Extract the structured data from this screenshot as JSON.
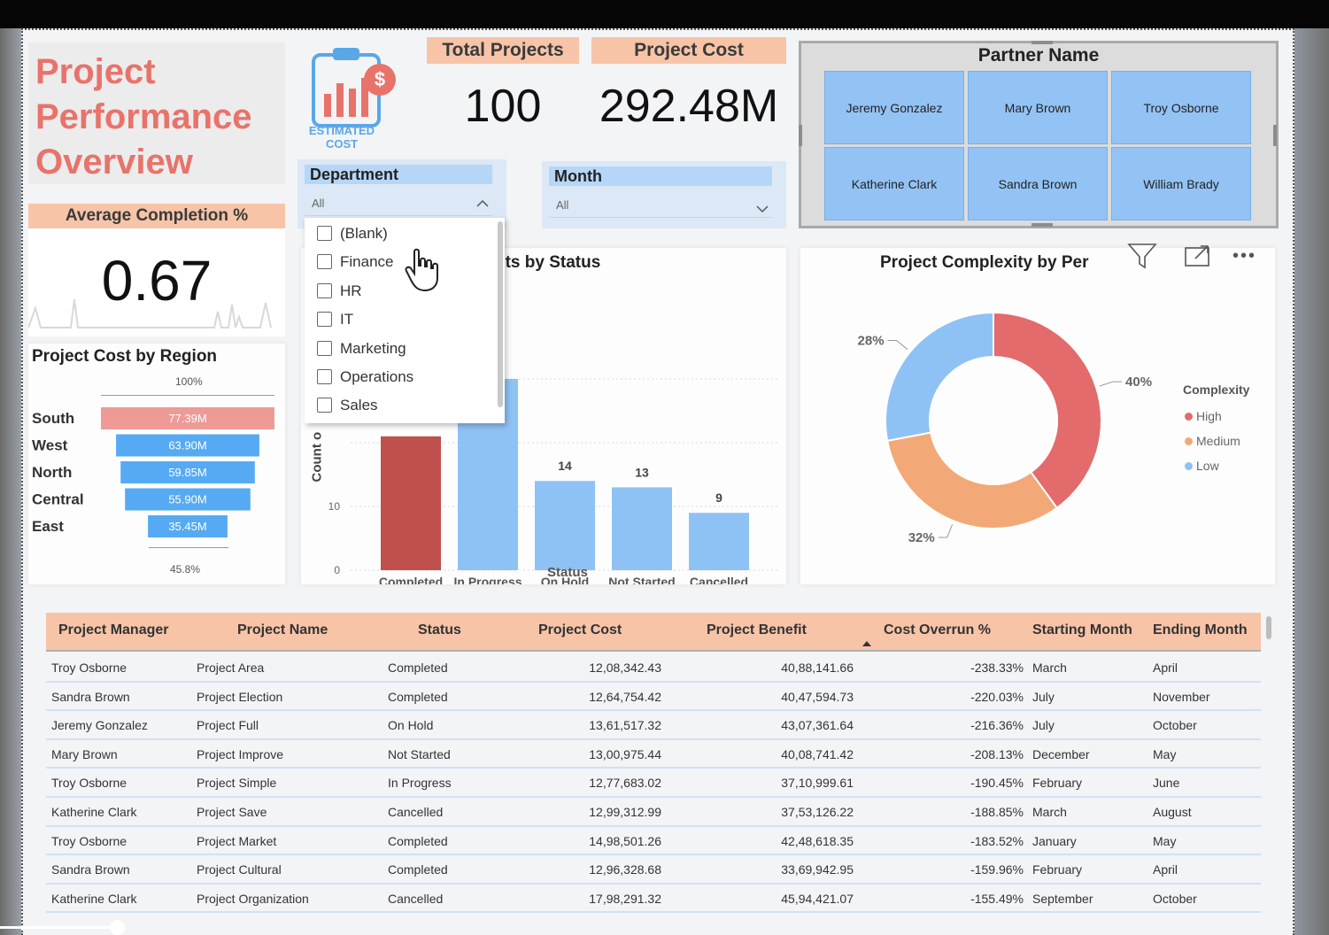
{
  "title_lines": [
    "Project",
    "Performance",
    "Overview"
  ],
  "icon_text": [
    "ESTIMATED",
    "COST"
  ],
  "kpis": {
    "total_projects": {
      "label": "Total Projects",
      "value": "100"
    },
    "project_cost": {
      "label": "Project Cost",
      "value": "292.48M"
    },
    "avg_completion": {
      "label": "Average Completion %",
      "value": "0.67"
    }
  },
  "department_slicer": {
    "label": "Department",
    "selected": "All",
    "options": [
      "(Blank)",
      "Finance",
      "HR",
      "IT",
      "Marketing",
      "Operations",
      "Sales"
    ]
  },
  "month_slicer": {
    "label": "Month",
    "selected": "All"
  },
  "partner_slicer": {
    "title": "Partner Name",
    "names": [
      "Jeremy Gonzalez",
      "Mary Brown",
      "Troy Osborne",
      "Katherine Clark",
      "Sandra Brown",
      "William Brady"
    ]
  },
  "region_chart": {
    "title": "Project Cost by Region",
    "top_pct": "100%",
    "bottom_pct": "45.8%"
  },
  "status_chart": {
    "title_fragment": "cts by Status",
    "ylabel_fragment": "Count o",
    "xlabel": "Status",
    "y_ticks": [
      "0",
      "10"
    ]
  },
  "complexity_chart": {
    "title": "Project Complexity by Per",
    "legend_title": "Complexity",
    "labels": [
      "40%",
      "32%",
      "28%"
    ]
  },
  "chart_data": [
    {
      "type": "bar",
      "orientation": "horizontal-funnel",
      "title": "Project Cost by Region",
      "categories": [
        "South",
        "West",
        "North",
        "Central",
        "East"
      ],
      "values": [
        77.39,
        63.9,
        59.85,
        55.9,
        35.45
      ],
      "value_labels": [
        "77.39M",
        "63.90M",
        "59.85M",
        "55.90M",
        "35.45M"
      ],
      "highlight": "South"
    },
    {
      "type": "bar",
      "title": "cts by Status",
      "xlabel": "Status",
      "ylabel": "Count o",
      "categories": [
        "Completed",
        "In Progress",
        "On Hold",
        "Not Started",
        "Cancelled"
      ],
      "values": [
        21,
        30,
        14,
        13,
        9
      ],
      "value_labels": [
        "",
        "",
        "14",
        "13",
        "9"
      ],
      "ylim": [
        0,
        30
      ]
    },
    {
      "type": "pie",
      "donut": true,
      "title": "Project Complexity by Per",
      "legend_title": "Complexity",
      "series": [
        {
          "name": "High",
          "value": 40,
          "color": "#e36b6b"
        },
        {
          "name": "Medium",
          "value": 32,
          "color": "#f3a877"
        },
        {
          "name": "Low",
          "value": 28,
          "color": "#8fc2f4"
        }
      ]
    }
  ],
  "table": {
    "columns": [
      "Project Manager",
      "Project Name",
      "Status",
      "Project Cost",
      "Project Benefit",
      "Cost Overrun %",
      "Starting Month",
      "Ending Month"
    ],
    "rows": [
      [
        "Troy Osborne",
        "Project Area",
        "Completed",
        "12,08,342.43",
        "40,88,141.66",
        "-238.33%",
        "March",
        "April"
      ],
      [
        "Sandra Brown",
        "Project Election",
        "Completed",
        "12,64,754.42",
        "40,47,594.73",
        "-220.03%",
        "July",
        "November"
      ],
      [
        "Jeremy Gonzalez",
        "Project Full",
        "On Hold",
        "13,61,517.32",
        "43,07,361.64",
        "-216.36%",
        "July",
        "October"
      ],
      [
        "Mary Brown",
        "Project Improve",
        "Not Started",
        "13,00,975.44",
        "40,08,741.42",
        "-208.13%",
        "December",
        "May"
      ],
      [
        "Troy Osborne",
        "Project Simple",
        "In Progress",
        "12,77,683.02",
        "37,10,999.61",
        "-190.45%",
        "February",
        "June"
      ],
      [
        "Katherine Clark",
        "Project Save",
        "Cancelled",
        "12,99,312.99",
        "37,53,126.22",
        "-188.85%",
        "March",
        "August"
      ],
      [
        "Troy Osborne",
        "Project Market",
        "Completed",
        "14,98,501.26",
        "42,48,618.35",
        "-183.52%",
        "January",
        "May"
      ],
      [
        "Sandra Brown",
        "Project Cultural",
        "Completed",
        "12,96,328.68",
        "33,69,942.95",
        "-159.96%",
        "February",
        "April"
      ],
      [
        "Katherine Clark",
        "Project Organization",
        "Cancelled",
        "17,98,291.32",
        "45,94,421.07",
        "-155.49%",
        "September",
        "October"
      ]
    ]
  },
  "colors": {
    "accent_salmon": "#e8736a",
    "header_peach": "#f7c4a8",
    "bar_blue": "#8fc2f4",
    "bar_highlight": "#c0504d"
  }
}
